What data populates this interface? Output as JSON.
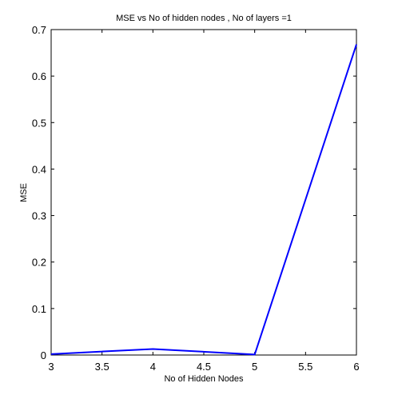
{
  "chart_data": {
    "type": "line",
    "title": "MSE vs No of hidden nodes , No of layers =1",
    "xlabel": "No of Hidden Nodes",
    "ylabel": "MSE",
    "xlim": [
      3,
      6
    ],
    "ylim": [
      0,
      0.7
    ],
    "xticks": [
      3,
      3.5,
      4,
      4.5,
      5,
      5.5,
      6
    ],
    "xtick_labels": [
      "3",
      "3.5",
      "4",
      "4.5",
      "5",
      "5.5",
      "6"
    ],
    "yticks": [
      0,
      0.1,
      0.2,
      0.3,
      0.4,
      0.5,
      0.6,
      0.7
    ],
    "ytick_labels": [
      "0",
      "0.1",
      "0.2",
      "0.3",
      "0.4",
      "0.5",
      "0.6",
      "0.7"
    ],
    "grid": false,
    "series": [
      {
        "x": [
          3,
          4,
          5,
          6
        ],
        "values": [
          0.002,
          0.013,
          0.001,
          0.668
        ],
        "color": "#0000ff"
      }
    ]
  }
}
